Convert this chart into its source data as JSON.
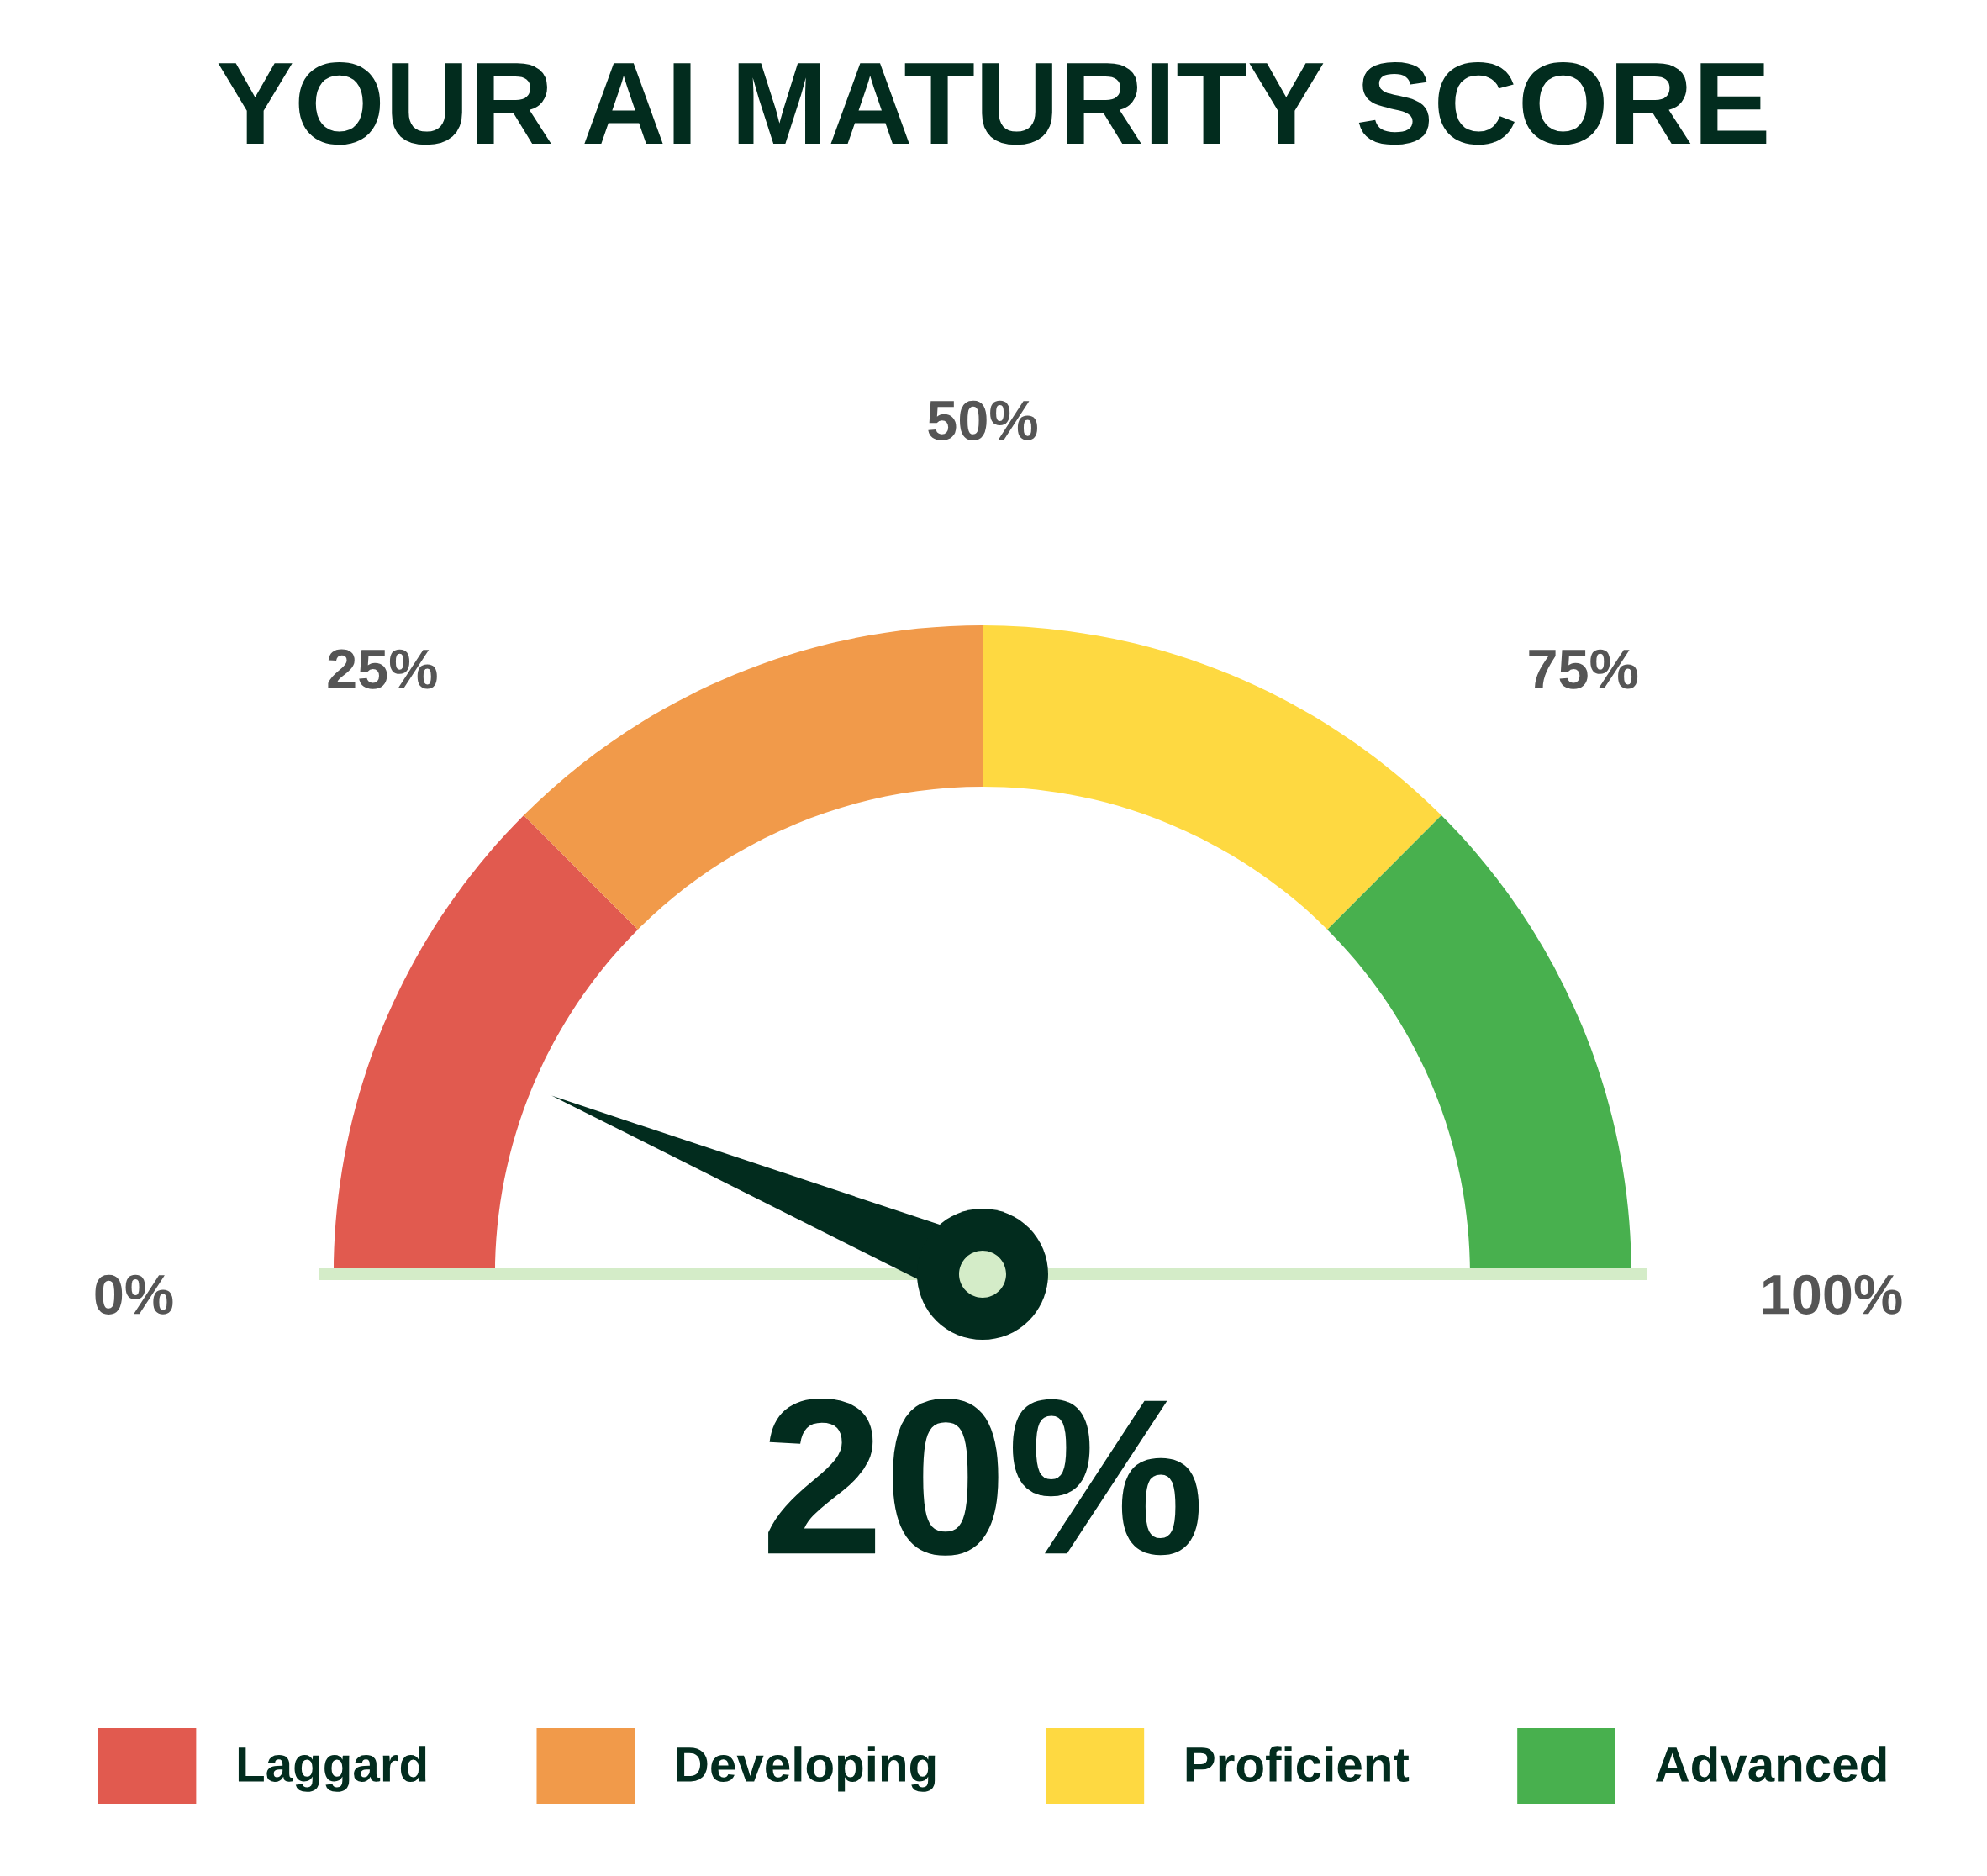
{
  "chart_data": {
    "type": "donut",
    "title": "YOUR AI MATURITY SCORE",
    "categories": [
      "Laggard",
      "Developing",
      "Proficient",
      "Advanced"
    ],
    "values": [
      25,
      25,
      25,
      25
    ],
    "colors": [
      "#e15a4f",
      "#f19a4a",
      "#fed941",
      "#48b04e"
    ],
    "needle": "Laggard",
    "annotations": [
      "0%",
      "25%",
      "50%",
      "75%",
      "100%",
      "20%"
    ],
    "legend": "bottom"
  }
}
